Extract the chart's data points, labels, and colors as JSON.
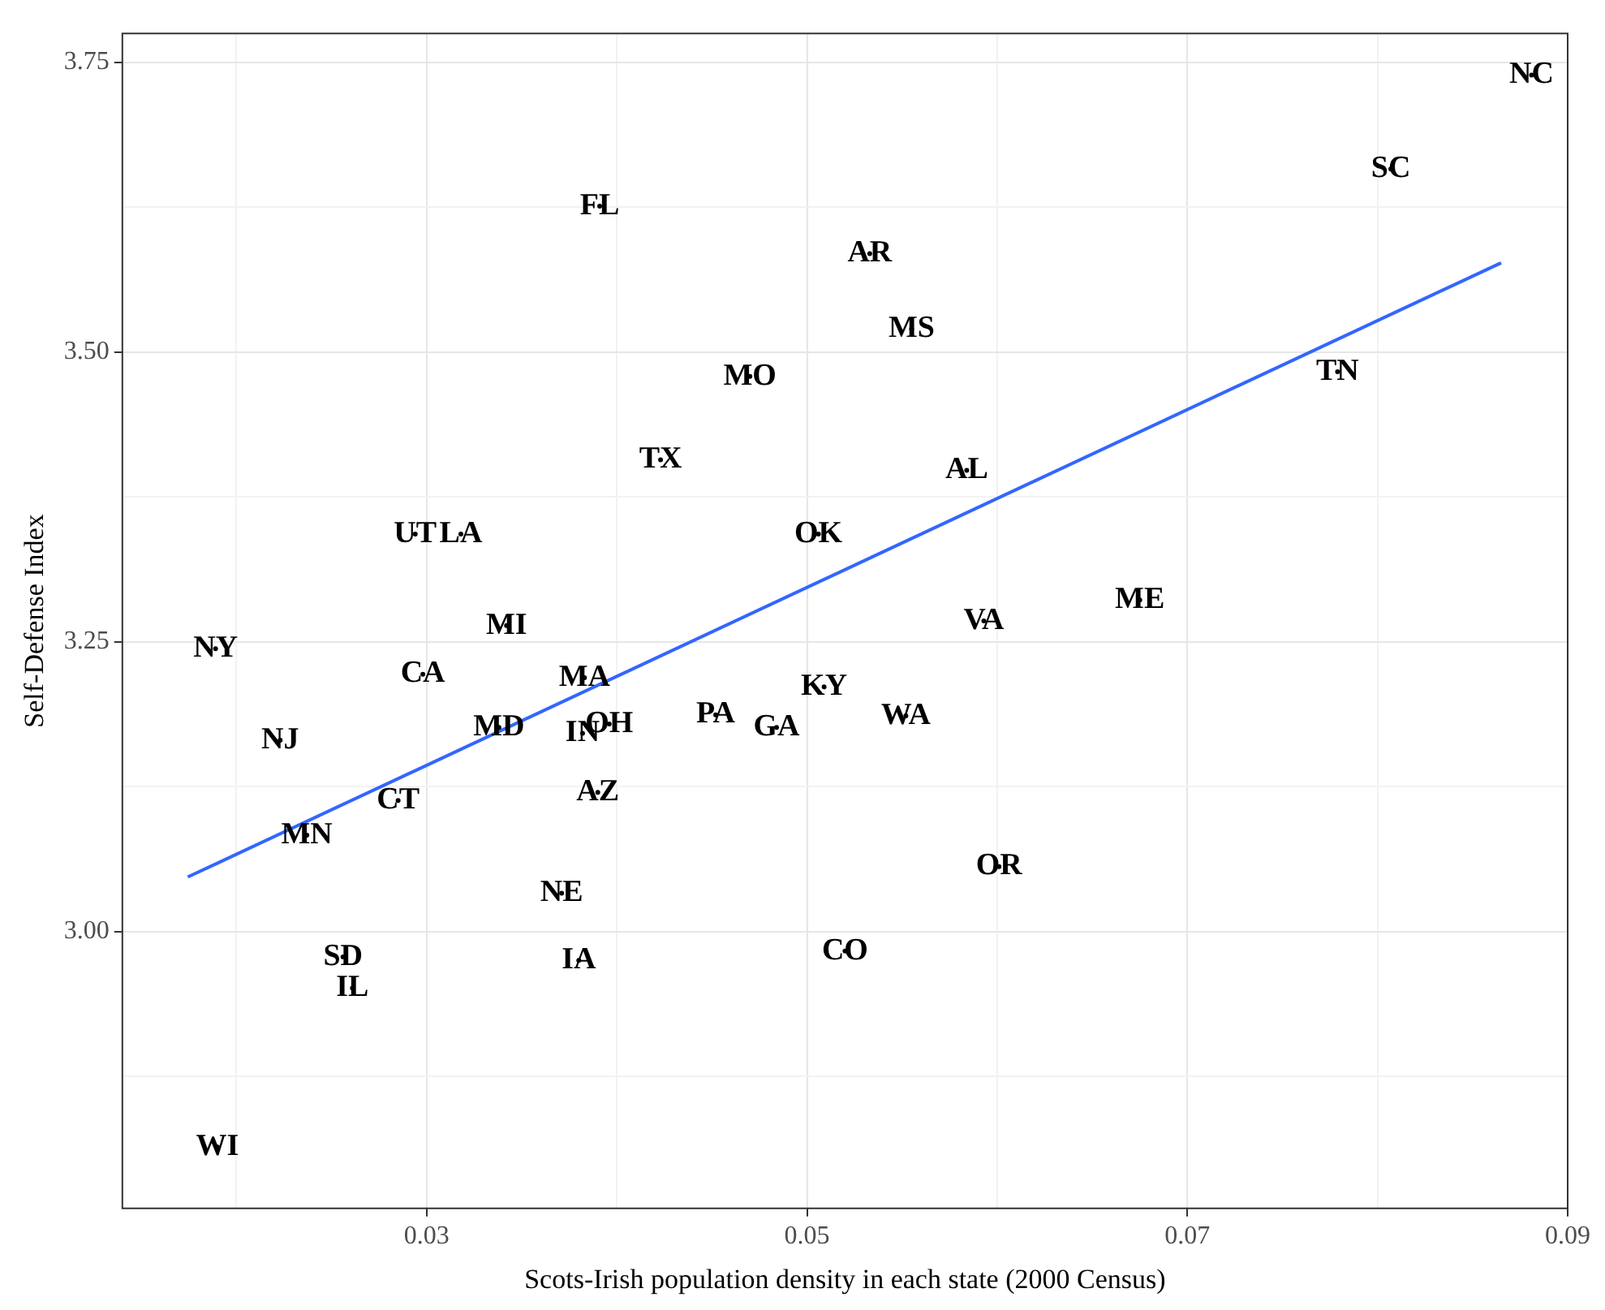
{
  "chart_data": {
    "type": "scatter",
    "xlabel": "Scots-Irish population density in each state (2000 Census)",
    "ylabel": "Self-Defense Index",
    "xlim": [
      0.014,
      0.09
    ],
    "ylim": [
      2.761,
      3.775
    ],
    "xticks": [
      {
        "value": 0.02,
        "label": null
      },
      0.03,
      {
        "value": 0.04,
        "label": null
      },
      0.05,
      {
        "value": 0.06,
        "label": null
      },
      0.07,
      {
        "value": 0.08,
        "label": null
      },
      0.09
    ],
    "yticks": [
      {
        "value": 2.875,
        "label": null
      },
      {
        "value": 3,
        "label": "3.00"
      },
      {
        "value": 3.125,
        "label": null
      },
      3.25,
      {
        "value": 3.375,
        "label": null
      },
      {
        "value": 3.5,
        "label": "3.50"
      },
      {
        "value": 3.625,
        "label": null
      },
      3.75
    ],
    "grid": true,
    "legend": false,
    "series": [
      {
        "type": "scatter",
        "color": "#000000",
        "x": [
          0.0881,
          0.0807,
          0.0391,
          0.0533,
          0.0555,
          0.047,
          0.0779,
          0.0423,
          0.0584,
          0.0294,
          0.0318,
          0.0506,
          0.0342,
          0.0189,
          0.0593,
          0.0675,
          0.0298,
          0.0383,
          0.0509,
          0.0223,
          0.0338,
          0.0382,
          0.0396,
          0.0452,
          0.0484,
          0.0552,
          0.0285,
          0.039,
          0.0237,
          0.0601,
          0.0371,
          0.0256,
          0.052,
          0.038,
          0.0261,
          0.019
        ],
        "values": [
          3.739,
          3.658,
          3.626,
          3.585,
          3.52,
          3.479,
          3.483,
          3.407,
          3.398,
          3.343,
          3.343,
          3.343,
          3.264,
          3.244,
          3.268,
          3.286,
          3.222,
          3.219,
          3.211,
          3.165,
          3.176,
          3.171,
          3.179,
          3.187,
          3.176,
          3.186,
          3.113,
          3.12,
          3.083,
          3.056,
          3.033,
          2.978,
          2.983,
          2.975,
          2.951,
          2.814
        ],
        "value_labels": [
          "NC",
          "SC",
          "FL",
          "AR",
          "MS",
          "MO",
          "TN",
          "TX",
          "AL",
          "UT",
          "LA",
          "OK",
          "MI",
          "NY",
          "VA",
          "ME",
          "CA",
          "MA",
          "KY",
          "NJ",
          "MD",
          "IN",
          "OH",
          "PA",
          "GA",
          "WA",
          "CT",
          "AZ",
          "MN",
          "OR",
          "NE",
          "SD",
          "CO",
          "IA",
          "IL",
          "WI"
        ]
      },
      {
        "type": "line",
        "color": "#3366ff",
        "x": [
          0.01744,
          0.0865
        ],
        "values": [
          3.047,
          3.577
        ]
      }
    ]
  }
}
